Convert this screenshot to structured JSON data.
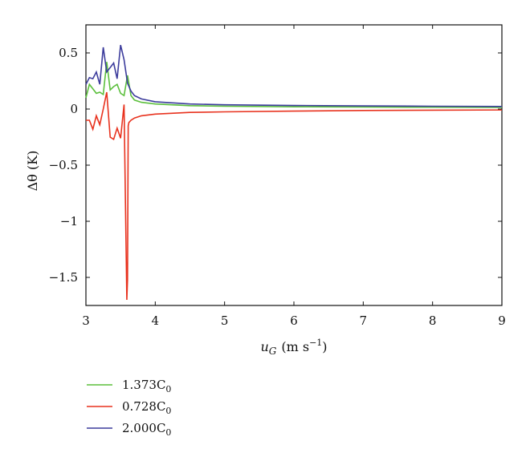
{
  "chart_data": {
    "type": "line",
    "title": "",
    "xlabel": {
      "base": "u",
      "sub": "G",
      "units": "(m s",
      "sup": "−1",
      "close": ")"
    },
    "ylabel": {
      "text": "Δθ (K)"
    },
    "xlim": [
      3,
      9
    ],
    "ylim": [
      -1.75,
      0.75
    ],
    "grid": false,
    "legend_position": "below",
    "x_ticks": [
      3,
      4,
      5,
      6,
      7,
      8,
      9
    ],
    "x_tick_labels": [
      "3",
      "4",
      "5",
      "6",
      "7",
      "8",
      "9"
    ],
    "y_ticks": [
      0.5,
      0,
      -0.5,
      -1,
      -1.5
    ],
    "y_tick_labels": [
      "0.5",
      "0",
      "−0.5",
      "−1",
      "−1.5"
    ],
    "series": [
      {
        "name": "1.373C0",
        "legend": {
          "main": "1.373C",
          "sub": "0"
        },
        "color": "#5bbf3c",
        "x": [
          3.0,
          3.05,
          3.1,
          3.15,
          3.2,
          3.25,
          3.3,
          3.35,
          3.4,
          3.45,
          3.5,
          3.55,
          3.6,
          3.65,
          3.7,
          3.8,
          4.0,
          4.5,
          5.0,
          6.0,
          7.0,
          8.0,
          9.0
        ],
        "y": [
          0.1,
          0.22,
          0.18,
          0.14,
          0.15,
          0.13,
          0.42,
          0.17,
          0.2,
          0.22,
          0.14,
          0.12,
          0.3,
          0.12,
          0.08,
          0.06,
          0.045,
          0.03,
          0.025,
          0.02,
          0.018,
          0.016,
          0.015
        ]
      },
      {
        "name": "0.728C0",
        "legend": {
          "main": "0.728C",
          "sub": "0"
        },
        "color": "#e8321e",
        "x": [
          3.0,
          3.05,
          3.1,
          3.15,
          3.2,
          3.25,
          3.3,
          3.35,
          3.4,
          3.45,
          3.5,
          3.55,
          3.59,
          3.6,
          3.61,
          3.62,
          3.65,
          3.7,
          3.8,
          4.0,
          4.5,
          5.0,
          6.0,
          7.0,
          8.0,
          9.0
        ],
        "y": [
          -0.1,
          -0.1,
          -0.18,
          -0.06,
          -0.14,
          0.0,
          0.15,
          -0.25,
          -0.27,
          -0.17,
          -0.26,
          0.04,
          -1.7,
          -1.52,
          -0.15,
          -0.12,
          -0.1,
          -0.08,
          -0.06,
          -0.045,
          -0.03,
          -0.025,
          -0.018,
          -0.013,
          -0.01,
          -0.008
        ]
      },
      {
        "name": "2.000C0",
        "legend": {
          "main": "2.000C",
          "sub": "0"
        },
        "color": "#3c3c9c",
        "x": [
          3.0,
          3.05,
          3.1,
          3.15,
          3.2,
          3.25,
          3.3,
          3.35,
          3.4,
          3.45,
          3.5,
          3.55,
          3.6,
          3.65,
          3.7,
          3.8,
          4.0,
          4.5,
          5.0,
          6.0,
          7.0,
          8.0,
          9.0
        ],
        "y": [
          0.22,
          0.28,
          0.27,
          0.33,
          0.22,
          0.55,
          0.33,
          0.37,
          0.41,
          0.27,
          0.57,
          0.44,
          0.23,
          0.16,
          0.12,
          0.09,
          0.065,
          0.045,
          0.038,
          0.032,
          0.028,
          0.025,
          0.023
        ]
      }
    ]
  }
}
